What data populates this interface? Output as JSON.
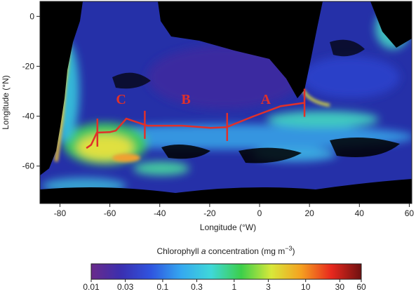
{
  "map": {
    "type": "map",
    "xlabel": "Longitude (°W)",
    "ylabel": "Longitude (°N)",
    "xlim": [
      -88,
      61
    ],
    "ylim": [
      -75,
      6
    ],
    "xticks": [
      -80,
      -60,
      -40,
      -20,
      0,
      20,
      40,
      60
    ],
    "yticks": [
      0,
      -20,
      -40,
      -60
    ],
    "transect": {
      "color": "#e0302a",
      "lon": [
        -69.4,
        -67.5,
        -65.2,
        -60,
        -57.6,
        -53.4,
        -45,
        -31,
        -19.7,
        -13.2,
        -2.8,
        8.4,
        18.3
      ],
      "lat": [
        -52.8,
        -51.5,
        -46.6,
        -46.4,
        -45.8,
        -41,
        -43.8,
        -43.8,
        -44.7,
        -44.4,
        -40.2,
        -36,
        -34.6
      ],
      "section_bounds": [
        -65,
        -46,
        -13,
        18
      ],
      "section_labels": [
        "C",
        "B",
        "A"
      ]
    }
  },
  "colorbar": {
    "title_parts": [
      "Chlorophyll ",
      "a",
      " concentration (mg m",
      "−3",
      ")"
    ],
    "lim": [
      0.01,
      60
    ],
    "ticks": [
      0.01,
      0.03,
      0.1,
      0.3,
      1,
      3,
      10,
      30,
      60
    ],
    "colors": [
      "#6a2a8a",
      "#3a2fb0",
      "#2f55e0",
      "#35a8f0",
      "#3fd8d8",
      "#3ccf4a",
      "#d8e83a",
      "#f5a020",
      "#e8281e",
      "#6e1010"
    ]
  }
}
